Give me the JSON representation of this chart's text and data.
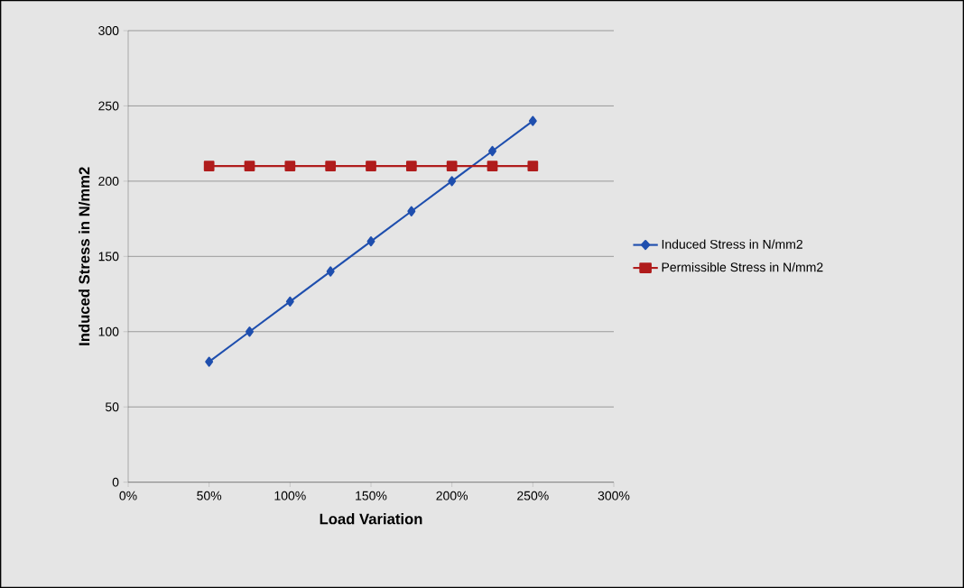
{
  "chart_data": {
    "type": "line",
    "xlabel": "Load Variation",
    "ylabel": "Induced Stress in N/mm2",
    "x": [
      50,
      75,
      100,
      125,
      150,
      175,
      200,
      225,
      250
    ],
    "series": [
      {
        "name": "Induced Stress in N/mm2",
        "color": "#1f4fae",
        "marker": "diamond",
        "values": [
          80,
          100,
          120,
          140,
          160,
          180,
          200,
          220,
          240
        ]
      },
      {
        "name": "Permissible Stress in N/mm2",
        "color": "#b01c1c",
        "marker": "square",
        "values": [
          210,
          210,
          210,
          210,
          210,
          210,
          210,
          210,
          210
        ]
      }
    ],
    "xlim": [
      0,
      300
    ],
    "xticks": [
      {
        "value": 0,
        "label": "0%"
      },
      {
        "value": 50,
        "label": "50%"
      },
      {
        "value": 100,
        "label": "100%"
      },
      {
        "value": 150,
        "label": "150%"
      },
      {
        "value": 200,
        "label": "200%"
      },
      {
        "value": 250,
        "label": "250%"
      },
      {
        "value": 300,
        "label": "300%"
      }
    ],
    "ylim": [
      0,
      300
    ],
    "yticks": [
      0,
      50,
      100,
      150,
      200,
      250,
      300
    ],
    "grid": "y",
    "legend": "right",
    "line_style": "solid"
  }
}
